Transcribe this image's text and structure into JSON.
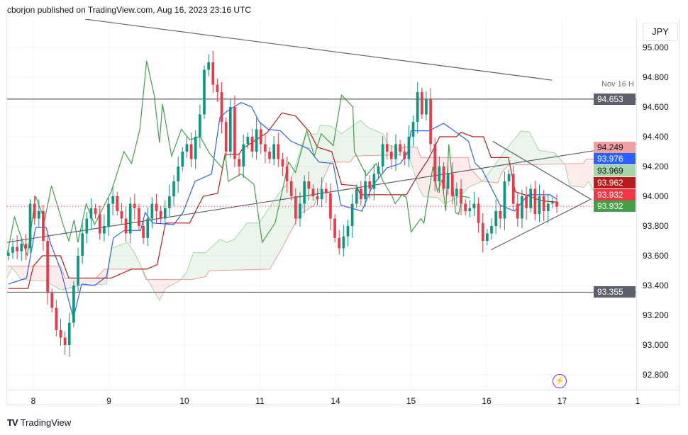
{
  "header": {
    "attribution": "cborjon published on TradingView.com, Aug 16, 2023 23:16 UTC"
  },
  "footer": {
    "logo_text": "TradingView",
    "logo_mark": "TV"
  },
  "currency_button": "JPY",
  "alert_icon": "lightning-icon",
  "colors": {
    "up": "#089981",
    "down": "#f23645",
    "tenkan": "#2962ff",
    "kijun": "#b71c1c",
    "chikou": "#43a047",
    "span_a": "#a5d6a7",
    "span_b": "#ef9a9a",
    "cloud_bull": "rgba(67,160,71,0.10)",
    "cloud_bear": "rgba(242,54,69,0.10)",
    "drawing": "#5d606b",
    "grid": "#f0f3fa"
  },
  "chart_data": {
    "type": "candlestick",
    "symbol_currency": "JPY",
    "x_unit": "trading days since Aug 8",
    "x_ticks": [
      {
        "t": 0,
        "label": "8"
      },
      {
        "t": 1,
        "label": "9"
      },
      {
        "t": 2,
        "label": "10"
      },
      {
        "t": 3,
        "label": "11"
      },
      {
        "t": 4,
        "label": "14"
      },
      {
        "t": 5,
        "label": "15"
      },
      {
        "t": 6,
        "label": "16"
      },
      {
        "t": 7,
        "label": "17"
      },
      {
        "t": 8,
        "label": "1"
      }
    ],
    "y_ticks": [
      "95.000",
      "94.800",
      "94.600",
      "94.400",
      "94.200",
      "94.000",
      "93.800",
      "93.600",
      "93.400",
      "93.200",
      "93.000",
      "92.800"
    ],
    "ylim": [
      92.72,
      95.19
    ],
    "xlim": [
      -0.35,
      7.98
    ],
    "candles_t_range": [
      -0.33,
      6.93
    ],
    "closes": [
      93.62,
      93.66,
      93.63,
      93.68,
      93.65,
      93.95,
      93.85,
      93.9,
      93.7,
      93.35,
      93.25,
      93.1,
      93.05,
      93.0,
      93.15,
      93.4,
      93.6,
      93.75,
      93.85,
      93.92,
      93.88,
      93.75,
      93.8,
      93.95,
      94.0,
      93.9,
      93.85,
      93.75,
      93.95,
      93.92,
      93.8,
      93.72,
      93.85,
      93.95,
      93.9,
      93.85,
      93.92,
      94.0,
      94.1,
      94.2,
      94.3,
      94.35,
      94.25,
      94.4,
      94.55,
      94.85,
      94.9,
      94.75,
      94.7,
      94.5,
      94.3,
      94.6,
      94.25,
      94.2,
      94.35,
      94.4,
      94.3,
      94.45,
      94.35,
      94.3,
      94.25,
      94.35,
      94.25,
      94.2,
      94.1,
      94.0,
      93.85,
      93.95,
      94.1,
      94.05,
      94.0,
      93.98,
      94.05,
      94.02,
      93.85,
      93.72,
      93.65,
      93.73,
      93.8,
      93.95,
      94.05,
      93.98,
      94.1,
      94.05,
      94.15,
      94.2,
      94.35,
      94.3,
      94.25,
      94.35,
      94.3,
      94.25,
      94.4,
      94.5,
      94.7,
      94.55,
      94.65,
      94.35,
      94.1,
      94.2,
      94.05,
      94.15,
      94.0,
      94.05,
      93.95,
      93.9,
      93.92,
      93.95,
      93.82,
      93.7,
      93.75,
      93.8,
      93.9,
      93.85,
      94.1,
      94.15,
      93.95,
      93.85,
      94.0,
      93.92,
      94.05,
      93.88,
      94.0,
      93.9,
      93.95,
      93.96,
      93.93
    ],
    "series": [
      {
        "name": "Tenkan-sen",
        "color_key": "tenkan",
        "points": [
          [
            -0.33,
            93.41
          ],
          [
            -0.09,
            93.45
          ],
          [
            0.03,
            93.79
          ],
          [
            0.17,
            93.79
          ],
          [
            0.23,
            93.68
          ],
          [
            0.36,
            93.51
          ],
          [
            0.53,
            93.18
          ],
          [
            0.64,
            93.41
          ],
          [
            0.81,
            93.4
          ],
          [
            0.97,
            93.46
          ],
          [
            1.06,
            93.72
          ],
          [
            1.2,
            93.77
          ],
          [
            1.42,
            93.77
          ],
          [
            1.48,
            93.89
          ],
          [
            1.58,
            93.82
          ],
          [
            1.86,
            93.81
          ],
          [
            1.98,
            93.89
          ],
          [
            2.14,
            94.1
          ],
          [
            2.36,
            94.15
          ],
          [
            2.47,
            94.53
          ],
          [
            2.56,
            94.57
          ],
          [
            2.75,
            94.63
          ],
          [
            2.89,
            94.6
          ],
          [
            2.99,
            94.5
          ],
          [
            3.11,
            94.45
          ],
          [
            3.27,
            94.44
          ],
          [
            3.41,
            94.37
          ],
          [
            3.64,
            94.32
          ],
          [
            3.78,
            94.23
          ],
          [
            3.97,
            94.22
          ],
          [
            4.07,
            93.94
          ],
          [
            4.35,
            93.9
          ],
          [
            4.49,
            94.07
          ],
          [
            4.68,
            94.19
          ],
          [
            4.86,
            94.22
          ],
          [
            4.96,
            94.3
          ],
          [
            5.0,
            94.44
          ],
          [
            5.24,
            94.44
          ],
          [
            5.43,
            94.49
          ],
          [
            5.57,
            94.44
          ],
          [
            5.76,
            94.37
          ],
          [
            5.85,
            94.22
          ],
          [
            5.94,
            94.18
          ],
          [
            6.18,
            93.94
          ],
          [
            6.37,
            93.9
          ],
          [
            6.55,
            94.01
          ],
          [
            6.84,
            94.01
          ],
          [
            6.93,
            93.98
          ]
        ]
      },
      {
        "name": "Kijun-sen",
        "color_key": "kijun",
        "points": [
          [
            -0.33,
            93.38
          ],
          [
            -0.07,
            93.38
          ],
          [
            0.0,
            93.53
          ],
          [
            0.12,
            93.6
          ],
          [
            0.36,
            93.6
          ],
          [
            0.47,
            93.45
          ],
          [
            1.03,
            93.45
          ],
          [
            1.3,
            93.51
          ],
          [
            1.5,
            93.51
          ],
          [
            1.64,
            93.54
          ],
          [
            1.75,
            93.82
          ],
          [
            2.07,
            93.82
          ],
          [
            2.25,
            94.0
          ],
          [
            2.44,
            94.02
          ],
          [
            2.54,
            94.28
          ],
          [
            2.72,
            94.28
          ],
          [
            2.77,
            94.32
          ],
          [
            3.1,
            94.43
          ],
          [
            3.29,
            94.56
          ],
          [
            3.47,
            94.54
          ],
          [
            3.66,
            94.43
          ],
          [
            3.76,
            94.33
          ],
          [
            3.95,
            94.3
          ],
          [
            4.08,
            94.08
          ],
          [
            4.28,
            94.07
          ],
          [
            4.33,
            94.01
          ],
          [
            4.94,
            94.01
          ],
          [
            5.1,
            94.15
          ],
          [
            5.22,
            94.24
          ],
          [
            5.38,
            94.4
          ],
          [
            5.6,
            94.4
          ],
          [
            5.66,
            94.43
          ],
          [
            5.82,
            94.4
          ],
          [
            5.96,
            94.4
          ],
          [
            6.06,
            94.26
          ],
          [
            6.29,
            94.26
          ],
          [
            6.38,
            94.03
          ],
          [
            6.57,
            94.0
          ],
          [
            6.72,
            93.97
          ],
          [
            6.95,
            93.96
          ]
        ]
      },
      {
        "name": "Chikou Span",
        "color_key": "chikou",
        "points": [
          [
            -0.35,
            93.6
          ],
          [
            -0.25,
            93.86
          ],
          [
            -0.08,
            93.6
          ],
          [
            0.03,
            94.0
          ],
          [
            0.15,
            93.84
          ],
          [
            0.24,
            94.07
          ],
          [
            0.4,
            93.8
          ],
          [
            0.47,
            93.7
          ],
          [
            0.54,
            93.84
          ],
          [
            0.59,
            93.69
          ],
          [
            0.7,
            93.95
          ],
          [
            0.81,
            93.81
          ],
          [
            1.03,
            94.03
          ],
          [
            1.2,
            94.3
          ],
          [
            1.3,
            94.22
          ],
          [
            1.41,
            94.45
          ],
          [
            1.5,
            94.91
          ],
          [
            1.6,
            94.68
          ],
          [
            1.67,
            94.36
          ],
          [
            1.71,
            94.62
          ],
          [
            1.83,
            94.27
          ],
          [
            1.96,
            94.45
          ],
          [
            2.07,
            94.38
          ],
          [
            2.21,
            94.4
          ],
          [
            2.33,
            94.29
          ],
          [
            2.5,
            94.19
          ],
          [
            2.54,
            94.29
          ],
          [
            2.58,
            94.1
          ],
          [
            2.75,
            94.15
          ],
          [
            2.92,
            94.08
          ],
          [
            3.03,
            93.69
          ],
          [
            3.2,
            93.82
          ],
          [
            3.38,
            94.23
          ],
          [
            3.47,
            94.16
          ],
          [
            3.62,
            94.44
          ],
          [
            3.72,
            94.27
          ],
          [
            3.81,
            94.42
          ],
          [
            3.97,
            94.34
          ],
          [
            4.08,
            94.68
          ],
          [
            4.23,
            94.6
          ],
          [
            4.25,
            94.3
          ],
          [
            4.41,
            94.14
          ],
          [
            4.54,
            94.22
          ],
          [
            4.63,
            94.1
          ],
          [
            4.75,
            94.0
          ],
          [
            4.79,
            93.95
          ],
          [
            4.88,
            94.01
          ],
          [
            4.94,
            93.99
          ],
          [
            5.0,
            93.76
          ],
          [
            5.13,
            93.85
          ],
          [
            5.17,
            93.82
          ],
          [
            5.29,
            94.2
          ],
          [
            5.35,
            94.03
          ],
          [
            5.41,
            94.11
          ],
          [
            5.46,
            93.9
          ],
          [
            5.5,
            94.35
          ],
          [
            5.59,
            93.89
          ],
          [
            5.63,
            93.88
          ],
          [
            5.68,
            94.0
          ],
          [
            5.78,
            93.99
          ]
        ]
      },
      {
        "name": "Senkou Span A",
        "color_key": "span_a",
        "points": [
          [
            -0.35,
            93.45
          ],
          [
            -0.28,
            93.52
          ],
          [
            -0.16,
            93.44
          ],
          [
            0.17,
            93.43
          ],
          [
            0.36,
            93.37
          ],
          [
            0.62,
            93.4
          ],
          [
            0.97,
            93.41
          ],
          [
            1.03,
            93.65
          ],
          [
            1.25,
            93.69
          ],
          [
            1.36,
            93.6
          ],
          [
            1.5,
            93.45
          ],
          [
            1.67,
            93.3
          ],
          [
            1.75,
            93.38
          ],
          [
            1.93,
            93.43
          ],
          [
            2.03,
            93.49
          ],
          [
            2.12,
            93.62
          ],
          [
            2.28,
            93.62
          ],
          [
            2.47,
            93.71
          ],
          [
            2.56,
            93.69
          ],
          [
            2.66,
            93.71
          ],
          [
            2.83,
            93.82
          ],
          [
            2.99,
            93.82
          ],
          [
            3.25,
            94.02
          ],
          [
            3.41,
            94.11
          ],
          [
            3.6,
            94.41
          ],
          [
            3.76,
            94.42
          ],
          [
            3.8,
            94.48
          ],
          [
            3.94,
            94.47
          ],
          [
            4.08,
            94.42
          ],
          [
            4.33,
            94.51
          ],
          [
            4.44,
            94.46
          ],
          [
            4.63,
            94.42
          ],
          [
            4.69,
            94.35
          ],
          [
            4.91,
            94.3
          ],
          [
            4.98,
            94.26
          ],
          [
            5.1,
            94.06
          ],
          [
            5.16,
            94.0
          ],
          [
            5.35,
            93.99
          ],
          [
            5.45,
            93.95
          ],
          [
            5.66,
            94.0
          ],
          [
            5.76,
            94.06
          ],
          [
            5.94,
            94.1
          ],
          [
            6.08,
            94.19
          ],
          [
            6.25,
            94.31
          ],
          [
            6.46,
            94.44
          ],
          [
            6.57,
            94.43
          ],
          [
            6.69,
            94.31
          ],
          [
            6.91,
            94.29
          ],
          [
            7.04,
            94.21
          ],
          [
            7.1,
            94.07
          ],
          [
            7.29,
            94.06
          ],
          [
            7.35,
            94.1
          ],
          [
            7.47,
            93.99
          ],
          [
            7.73,
            94.0
          ],
          [
            7.98,
            93.97
          ]
        ]
      },
      {
        "name": "Senkou Span B",
        "color_key": "span_b",
        "points": [
          [
            -0.35,
            93.53
          ],
          [
            0.36,
            93.53
          ],
          [
            0.42,
            93.45
          ],
          [
            0.83,
            93.45
          ],
          [
            0.94,
            93.51
          ],
          [
            1.44,
            93.51
          ],
          [
            1.49,
            93.44
          ],
          [
            2.09,
            93.44
          ],
          [
            2.28,
            93.46
          ],
          [
            2.33,
            93.5
          ],
          [
            3.13,
            93.51
          ],
          [
            3.29,
            93.65
          ],
          [
            3.53,
            93.88
          ],
          [
            3.72,
            93.94
          ],
          [
            3.85,
            94.13
          ],
          [
            3.94,
            94.23
          ],
          [
            4.19,
            94.23
          ],
          [
            4.25,
            94.27
          ],
          [
            4.85,
            94.28
          ],
          [
            4.88,
            94.33
          ],
          [
            5.08,
            94.33
          ],
          [
            5.13,
            94.26
          ],
          [
            5.76,
            94.26
          ],
          [
            5.78,
            94.19
          ],
          [
            5.94,
            94.1
          ],
          [
            6.15,
            94.09
          ],
          [
            6.2,
            94.16
          ],
          [
            6.29,
            94.21
          ],
          [
            7.28,
            94.22
          ],
          [
            7.32,
            94.25
          ],
          [
            7.98,
            94.25
          ]
        ]
      }
    ],
    "drawings": {
      "trend_lines": [
        {
          "name": "descending-resistance",
          "from": [
            0.69,
            95.19
          ],
          "to": [
            6.87,
            94.78
          ]
        },
        {
          "name": "ascending-trendline",
          "from": [
            -0.35,
            93.69
          ],
          "to": [
            7.98,
            94.35
          ]
        }
      ],
      "triangle": {
        "top": [
          6.08,
          94.37
        ],
        "apex": [
          7.38,
          93.98
        ],
        "bottom": [
          6.06,
          93.64
        ]
      },
      "horizontal_lines": [
        {
          "price": 94.653,
          "label": "Nov 16 H",
          "tag": "94.653"
        },
        {
          "price": 93.355,
          "tag": "93.355"
        }
      ]
    },
    "current_price": 93.932,
    "price_tags": [
      {
        "value": "94.249",
        "bg": "#f0a0a0",
        "fg": "#131722"
      },
      {
        "value": "93.976",
        "bg": "#2962ff",
        "fg": "#ffffff"
      },
      {
        "value": "93.969",
        "bg": "#a5d6a7",
        "fg": "#131722"
      },
      {
        "value": "93.962",
        "bg": "#b71c1c",
        "fg": "#ffffff"
      },
      {
        "value": "93.932",
        "bg": "#f23645",
        "fg": "#ffffff"
      },
      {
        "value": "93.932",
        "bg": "#43a047",
        "fg": "#ffffff"
      }
    ]
  }
}
